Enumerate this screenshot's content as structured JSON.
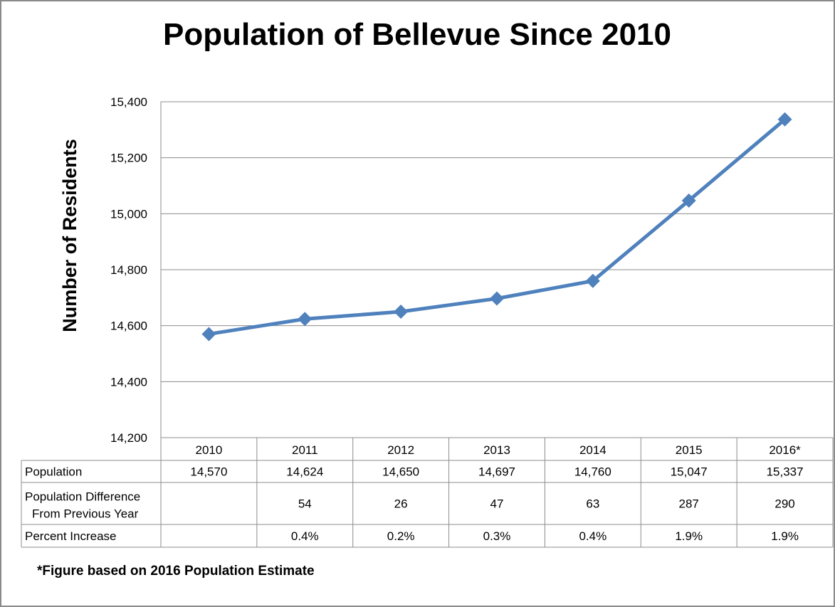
{
  "chart_data": {
    "type": "line",
    "title": "Population of Bellevue Since 2010",
    "ylabel": "Number of Residents",
    "xlabel": "",
    "categories": [
      "2010",
      "2011",
      "2012",
      "2013",
      "2014",
      "2015",
      "2016*"
    ],
    "series": [
      {
        "values": [
          14570,
          14624,
          14650,
          14697,
          14760,
          15047,
          15337
        ]
      }
    ],
    "ylim": [
      14200,
      15400
    ],
    "yticks": [
      14200,
      14400,
      14600,
      14800,
      15000,
      15200,
      15400
    ],
    "ytick_labels": [
      "14,200",
      "14,400",
      "14,600",
      "14,800",
      "15,000",
      "15,200",
      "15,400"
    ],
    "grid": true,
    "marker": "diamond",
    "line_color": "#4f81bd",
    "data_table": {
      "rows": [
        {
          "label": [
            "Population"
          ],
          "cells": [
            "14,570",
            "14,624",
            "14,650",
            "14,697",
            "14,760",
            "15,047",
            "15,337"
          ]
        },
        {
          "label": [
            "Population Difference",
            "From Previous Year"
          ],
          "cells": [
            "",
            "54",
            "26",
            "47",
            "63",
            "287",
            "290"
          ]
        },
        {
          "label": [
            "Percent Increase"
          ],
          "cells": [
            "",
            "0.4%",
            "0.2%",
            "0.3%",
            "0.4%",
            "1.9%",
            "1.9%"
          ]
        }
      ]
    },
    "footnote": "*Figure based on 2016 Population Estimate"
  }
}
